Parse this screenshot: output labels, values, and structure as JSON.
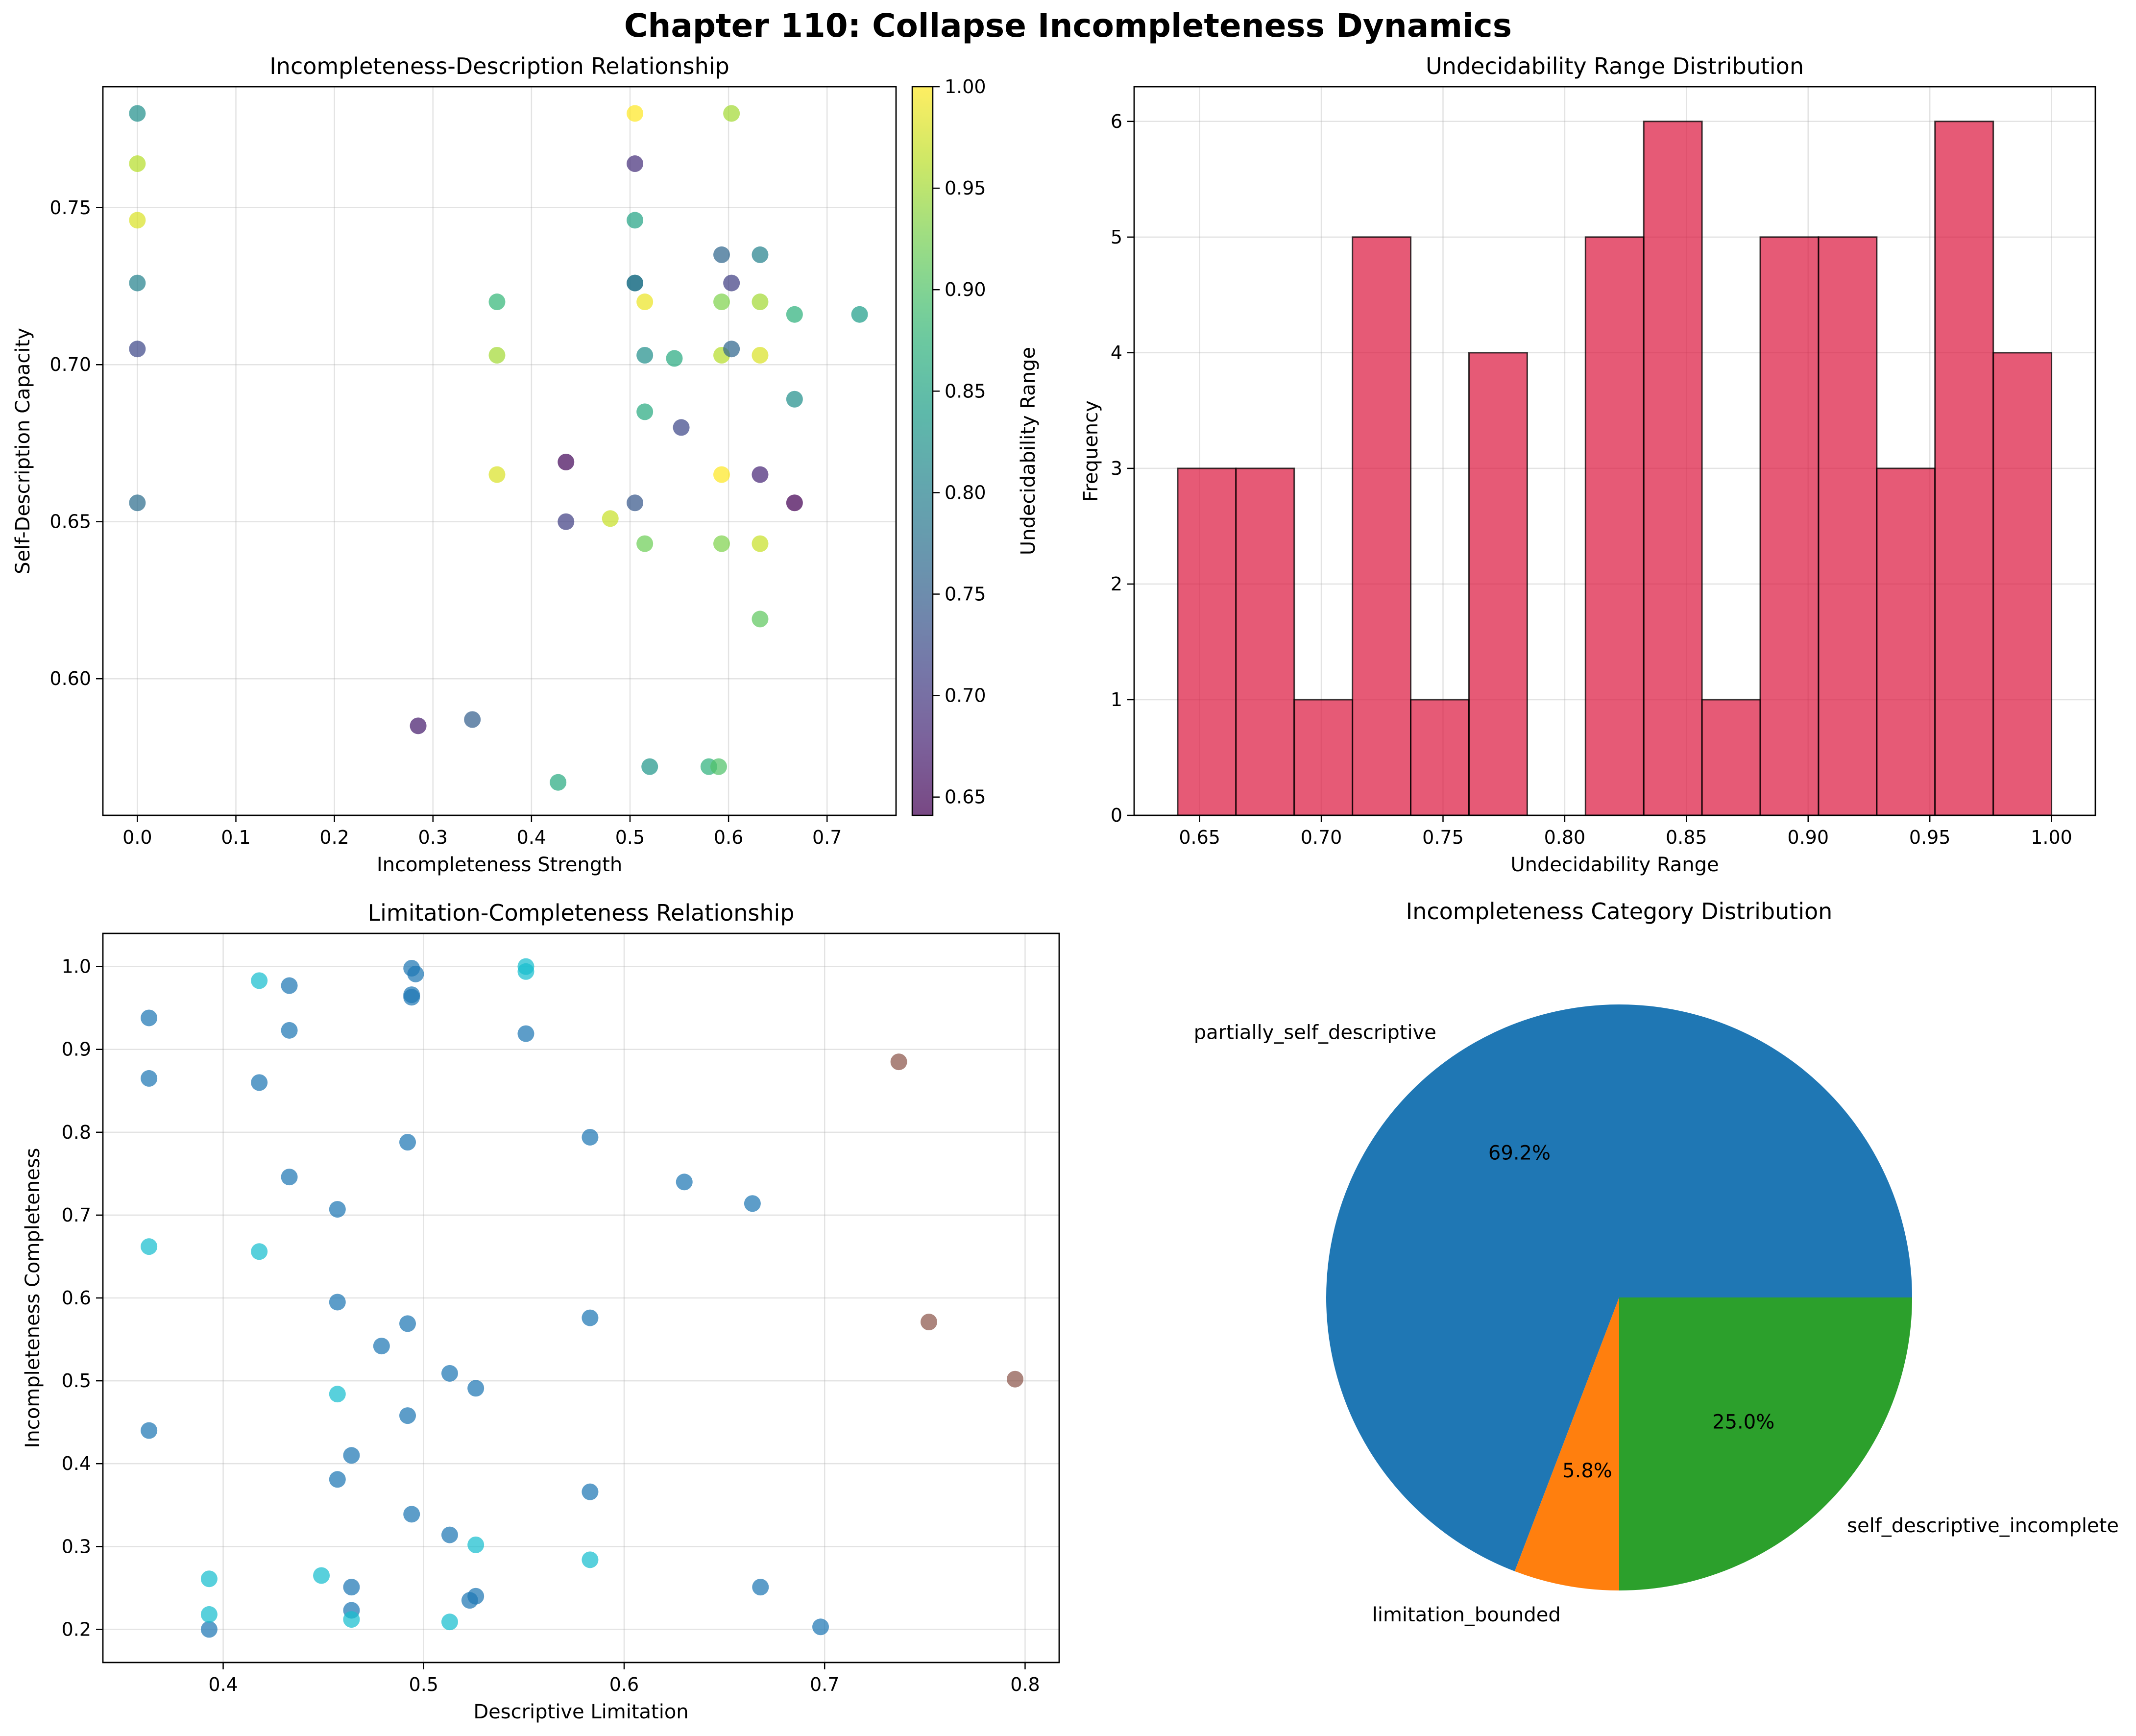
{
  "figure_title": "Chapter 110: Collapse Incompleteness Dynamics",
  "chart_data": [
    {
      "id": "scatter1",
      "type": "scatter",
      "title": "Incompleteness-Description Relationship",
      "xlabel": "Incompleteness Strength",
      "ylabel": "Self-Description Capacity",
      "xlim": [
        -0.035,
        0.77
      ],
      "ylim": [
        0.5565,
        0.7885
      ],
      "xticks": [
        0.0,
        0.1,
        0.2,
        0.3,
        0.4,
        0.5,
        0.6,
        0.7
      ],
      "xtick_labels": [
        "0.0",
        "0.1",
        "0.2",
        "0.3",
        "0.4",
        "0.5",
        "0.6",
        "0.7"
      ],
      "yticks": [
        0.6,
        0.65,
        0.7,
        0.75
      ],
      "ytick_labels": [
        "0.60",
        "0.65",
        "0.70",
        "0.75"
      ],
      "colorbar": {
        "label": "Undecidability Range",
        "min": 0.641,
        "max": 1.0,
        "ticks": [
          0.65,
          0.7,
          0.75,
          0.8,
          0.85,
          0.9,
          0.95,
          1.0
        ],
        "tick_labels": [
          "0.65",
          "0.70",
          "0.75",
          "0.80",
          "0.85",
          "0.90",
          "0.95",
          "1.00"
        ]
      },
      "points": [
        [
          0.0,
          0.78,
          0.82
        ],
        [
          0.0,
          0.764,
          0.96
        ],
        [
          0.0,
          0.746,
          0.98
        ],
        [
          0.0,
          0.726,
          0.8
        ],
        [
          0.0,
          0.705,
          0.72
        ],
        [
          0.0,
          0.656,
          0.77
        ],
        [
          0.285,
          0.585,
          0.67
        ],
        [
          0.34,
          0.587,
          0.75
        ],
        [
          0.365,
          0.72,
          0.88
        ],
        [
          0.365,
          0.703,
          0.95
        ],
        [
          0.365,
          0.665,
          0.98
        ],
        [
          0.427,
          0.567,
          0.86
        ],
        [
          0.435,
          0.669,
          0.65
        ],
        [
          0.435,
          0.65,
          0.71
        ],
        [
          0.48,
          0.651,
          0.97
        ],
        [
          0.505,
          0.78,
          1.0
        ],
        [
          0.505,
          0.764,
          0.69
        ],
        [
          0.505,
          0.746,
          0.85
        ],
        [
          0.505,
          0.726,
          0.8
        ],
        [
          0.505,
          0.726,
          0.78
        ],
        [
          0.505,
          0.656,
          0.74
        ],
        [
          0.515,
          0.72,
          0.99
        ],
        [
          0.515,
          0.703,
          0.82
        ],
        [
          0.515,
          0.685,
          0.86
        ],
        [
          0.515,
          0.643,
          0.92
        ],
        [
          0.52,
          0.572,
          0.83
        ],
        [
          0.545,
          0.702,
          0.86
        ],
        [
          0.552,
          0.68,
          0.72
        ],
        [
          0.58,
          0.572,
          0.87
        ],
        [
          0.59,
          0.572,
          0.9
        ],
        [
          0.593,
          0.735,
          0.76
        ],
        [
          0.593,
          0.72,
          0.93
        ],
        [
          0.593,
          0.703,
          0.96
        ],
        [
          0.593,
          0.665,
          1.0
        ],
        [
          0.593,
          0.643,
          0.93
        ],
        [
          0.603,
          0.78,
          0.95
        ],
        [
          0.603,
          0.726,
          0.71
        ],
        [
          0.603,
          0.705,
          0.76
        ],
        [
          0.632,
          0.735,
          0.8
        ],
        [
          0.632,
          0.72,
          0.95
        ],
        [
          0.632,
          0.703,
          0.98
        ],
        [
          0.632,
          0.665,
          0.68
        ],
        [
          0.632,
          0.643,
          0.97
        ],
        [
          0.632,
          0.619,
          0.91
        ],
        [
          0.667,
          0.716,
          0.87
        ],
        [
          0.667,
          0.689,
          0.82
        ],
        [
          0.667,
          0.656,
          0.64
        ],
        [
          0.733,
          0.716,
          0.84
        ]
      ]
    },
    {
      "id": "hist",
      "type": "bar",
      "title": "Undecidability Range Distribution",
      "xlabel": "Undecidability Range",
      "ylabel": "Frequency",
      "xlim": [
        0.6231,
        1.018
      ],
      "ylim": [
        0,
        6.3
      ],
      "xticks": [
        0.65,
        0.7,
        0.75,
        0.8,
        0.85,
        0.9,
        0.95,
        1.0
      ],
      "xtick_labels": [
        "0.65",
        "0.70",
        "0.75",
        "0.80",
        "0.85",
        "0.90",
        "0.95",
        "1.00"
      ],
      "yticks": [
        0,
        1,
        2,
        3,
        4,
        5,
        6
      ],
      "ytick_labels": [
        "0",
        "1",
        "2",
        "3",
        "4",
        "5",
        "6"
      ],
      "bin_start": 0.641,
      "bin_end": 1.0,
      "values": [
        3,
        3,
        1,
        5,
        1,
        4,
        0,
        5,
        6,
        1,
        5,
        5,
        3,
        6,
        4
      ]
    },
    {
      "id": "scatter2",
      "type": "scatter",
      "title": "Limitation-Completeness Relationship",
      "xlabel": "Descriptive Limitation",
      "ylabel": "Incompleteness Completeness",
      "xlim": [
        0.34,
        0.817
      ],
      "ylim": [
        0.16,
        1.04
      ],
      "xticks": [
        0.4,
        0.5,
        0.6,
        0.7,
        0.8
      ],
      "xtick_labels": [
        "0.4",
        "0.5",
        "0.6",
        "0.7",
        "0.8"
      ],
      "yticks": [
        0.2,
        0.3,
        0.4,
        0.5,
        0.6,
        0.7,
        0.8,
        0.9,
        1.0
      ],
      "ytick_labels": [
        "0.2",
        "0.3",
        "0.4",
        "0.5",
        "0.6",
        "0.7",
        "0.8",
        "0.9",
        "1.0"
      ],
      "groups": [
        {
          "name": "partially_self_descriptive",
          "color": "#1f77b4",
          "points": [
            [
              0.363,
              0.938
            ],
            [
              0.363,
              0.865
            ],
            [
              0.363,
              0.44
            ],
            [
              0.393,
              0.2
            ],
            [
              0.418,
              0.86
            ],
            [
              0.433,
              0.977
            ],
            [
              0.433,
              0.923
            ],
            [
              0.433,
              0.746
            ],
            [
              0.457,
              0.707
            ],
            [
              0.457,
              0.595
            ],
            [
              0.457,
              0.381
            ],
            [
              0.464,
              0.41
            ],
            [
              0.464,
              0.251
            ],
            [
              0.464,
              0.223
            ],
            [
              0.479,
              0.542
            ],
            [
              0.492,
              0.788
            ],
            [
              0.492,
              0.569
            ],
            [
              0.492,
              0.458
            ],
            [
              0.494,
              0.998
            ],
            [
              0.494,
              0.966
            ],
            [
              0.494,
              0.963
            ],
            [
              0.494,
              0.339
            ],
            [
              0.496,
              0.991
            ],
            [
              0.513,
              0.509
            ],
            [
              0.513,
              0.314
            ],
            [
              0.523,
              0.235
            ],
            [
              0.526,
              0.491
            ],
            [
              0.526,
              0.24
            ],
            [
              0.551,
              0.919
            ],
            [
              0.583,
              0.794
            ],
            [
              0.583,
              0.576
            ],
            [
              0.583,
              0.366
            ],
            [
              0.63,
              0.74
            ],
            [
              0.664,
              0.714
            ],
            [
              0.668,
              0.251
            ],
            [
              0.698,
              0.203
            ]
          ]
        },
        {
          "name": "self_descriptive_incomplete",
          "color": "#17becf",
          "points": [
            [
              0.363,
              0.662
            ],
            [
              0.393,
              0.261
            ],
            [
              0.393,
              0.218
            ],
            [
              0.418,
              0.983
            ],
            [
              0.418,
              0.656
            ],
            [
              0.449,
              0.265
            ],
            [
              0.457,
              0.484
            ],
            [
              0.464,
              0.212
            ],
            [
              0.513,
              0.209
            ],
            [
              0.526,
              0.302
            ],
            [
              0.551,
              1.0
            ],
            [
              0.551,
              0.994
            ],
            [
              0.583,
              0.284
            ]
          ]
        },
        {
          "name": "limitation_bounded",
          "color": "#8c564b",
          "points": [
            [
              0.737,
              0.885
            ],
            [
              0.752,
              0.571
            ],
            [
              0.795,
              0.502
            ]
          ]
        }
      ]
    },
    {
      "id": "pie",
      "type": "pie",
      "title": "Incompleteness Category Distribution",
      "slices": [
        {
          "label": "partially_self_descriptive",
          "value": 69.2,
          "pct_label": "69.2%",
          "color": "#1f77b4"
        },
        {
          "label": "limitation_bounded",
          "value": 5.8,
          "pct_label": "5.8%",
          "color": "#ff7f0e"
        },
        {
          "label": "self_descriptive_incomplete",
          "value": 25.0,
          "pct_label": "25.0%",
          "color": "#2ca02c"
        }
      ]
    }
  ]
}
